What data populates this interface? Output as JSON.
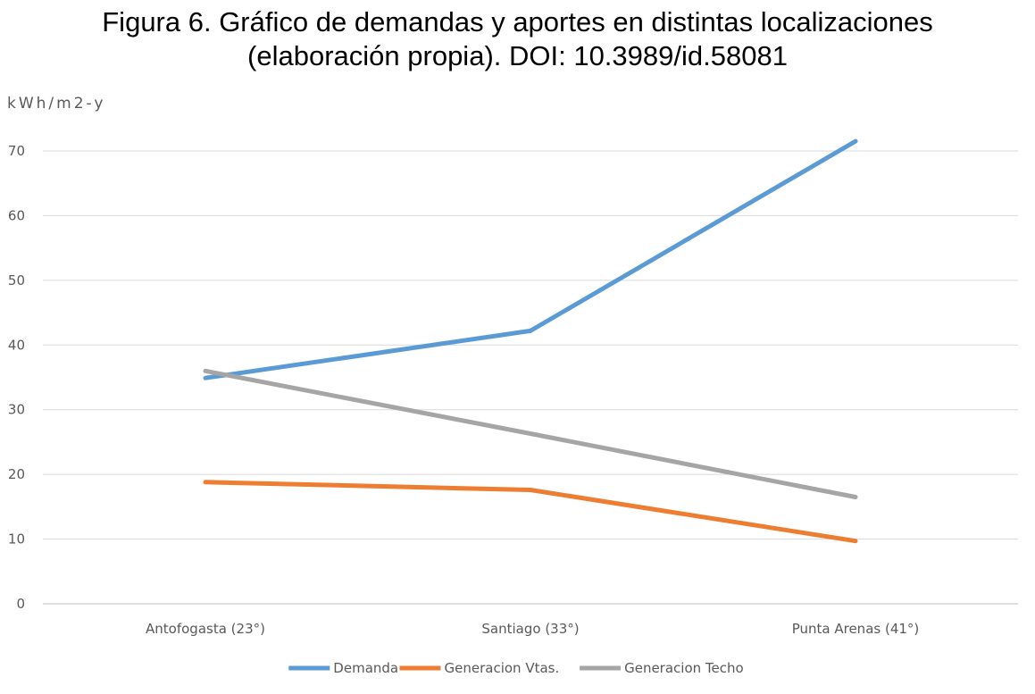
{
  "title_lines": [
    "Figura 6. Gráfico de demandas y aportes en distintas localizaciones",
    "(elaboración propia). DOI: 10.3989/id.58081"
  ],
  "chart_data": {
    "type": "line",
    "title": "Figura 6. Gráfico de demandas y aportes en distintas localizaciones (elaboración propia). DOI: 10.3989/id.58081",
    "ylabel": "kWh/m2-y",
    "xlabel": "",
    "categories": [
      "Antofogasta (23°)",
      "Santiago (33°)",
      "Punta Arenas (41°)"
    ],
    "ylim": [
      0,
      70
    ],
    "yticks": [
      0,
      10,
      20,
      30,
      40,
      50,
      60,
      70
    ],
    "grid": true,
    "legend": "bottom",
    "series": [
      {
        "name": "Demanda",
        "color": "#5B9BD5",
        "values": [
          34.9,
          42.2,
          71.5
        ]
      },
      {
        "name": "Generacion Vtas.",
        "color": "#ED7D31",
        "values": [
          18.8,
          17.6,
          9.7
        ]
      },
      {
        "name": "Generacion Techo",
        "color": "#A5A5A5",
        "values": [
          36.0,
          26.3,
          16.5
        ]
      }
    ]
  }
}
